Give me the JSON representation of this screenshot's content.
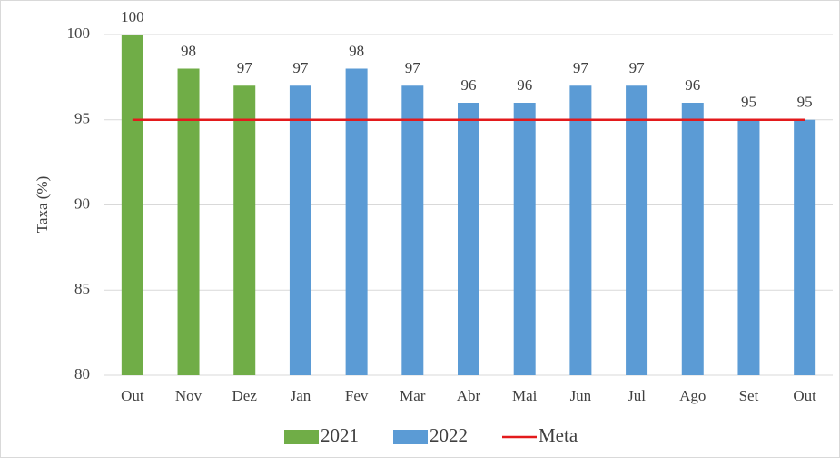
{
  "chart_data": {
    "type": "bar",
    "y_label": "Taxa (%)",
    "categories": [
      "Out",
      "Nov",
      "Dez",
      "Jan",
      "Fev",
      "Mar",
      "Abr",
      "Mai",
      "Jun",
      "Jul",
      "Ago",
      "Set",
      "Out"
    ],
    "series": [
      {
        "name": "2021",
        "color": "#70ad47",
        "values": [
          100,
          98,
          97,
          null,
          null,
          null,
          null,
          null,
          null,
          null,
          null,
          null,
          null
        ]
      },
      {
        "name": "2022",
        "color": "#5b9bd5",
        "values": [
          null,
          null,
          null,
          97,
          98,
          97,
          96,
          96,
          97,
          97,
          96,
          95,
          95
        ]
      },
      {
        "name": "Meta",
        "color": "#e31a1c",
        "type": "line",
        "values": [
          95,
          95,
          95,
          95,
          95,
          95,
          95,
          95,
          95,
          95,
          95,
          95,
          95
        ]
      }
    ],
    "ylim": [
      80,
      100
    ],
    "yticks": [
      80,
      85,
      90,
      95,
      100
    ],
    "grid": true,
    "legend": "bottom"
  }
}
